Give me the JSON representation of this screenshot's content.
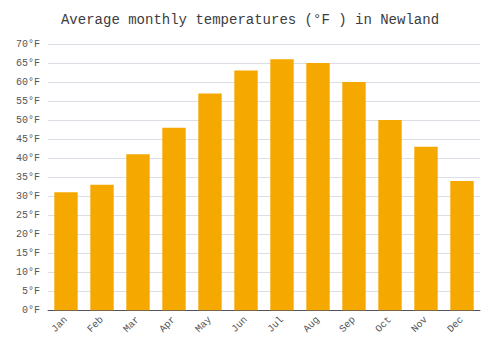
{
  "chart_data": {
    "type": "bar",
    "title": "Average monthly temperatures (°F ) in Newland",
    "categories": [
      "Jan",
      "Feb",
      "Mar",
      "Apr",
      "May",
      "Jun",
      "Jul",
      "Aug",
      "Sep",
      "Oct",
      "Nov",
      "Dec"
    ],
    "values": [
      31,
      33,
      41,
      48,
      57,
      63,
      66,
      65,
      60,
      50,
      43,
      34
    ],
    "color": "#F5A800",
    "ylim": [
      0,
      70
    ],
    "yticks": [
      {
        "value": 0,
        "label": "0°F"
      },
      {
        "value": 5,
        "label": "5°F"
      },
      {
        "value": 10,
        "label": "10°F"
      },
      {
        "value": 15,
        "label": "15°F"
      },
      {
        "value": 20,
        "label": "20°F"
      },
      {
        "value": 25,
        "label": "25°F"
      },
      {
        "value": 30,
        "label": "30°F"
      },
      {
        "value": 35,
        "label": "35°F"
      },
      {
        "value": 40,
        "label": "40°F"
      },
      {
        "value": 45,
        "label": "45°F"
      },
      {
        "value": 50,
        "label": "50°F"
      },
      {
        "value": 55,
        "label": "55°F"
      },
      {
        "value": 60,
        "label": "60°F"
      },
      {
        "value": 65,
        "label": "65°F"
      },
      {
        "value": 70,
        "label": "70°F"
      }
    ],
    "grid": true
  }
}
